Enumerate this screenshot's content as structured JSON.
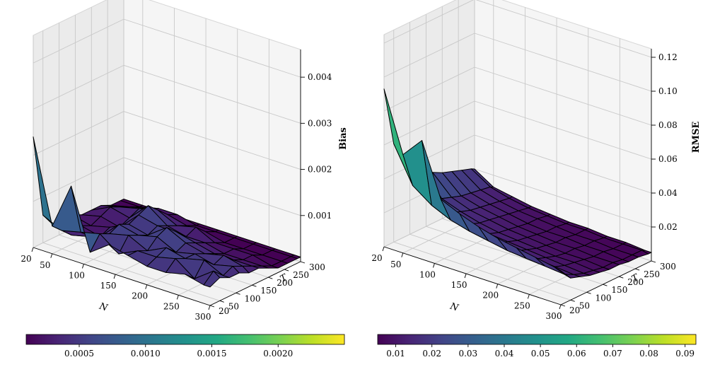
{
  "chart_data": [
    {
      "type": "surface",
      "panel": "left",
      "zlabel": "Bias",
      "xlabel": "N",
      "ylabel": "T",
      "N": [
        20,
        50,
        80,
        110,
        140,
        170,
        200,
        230,
        260,
        290,
        300
      ],
      "T": [
        20,
        50,
        80,
        110,
        140,
        170,
        200,
        230,
        260,
        290,
        300
      ],
      "x_ticks": [
        "20",
        "50",
        "100",
        "150",
        "200",
        "250",
        "300"
      ],
      "y_ticks": [
        "20",
        "50",
        "100",
        "150",
        "200",
        "250",
        "300"
      ],
      "z_ticks": [
        "0.001",
        "0.002",
        "0.003",
        "0.004"
      ],
      "zlim": [
        0,
        0.0046
      ],
      "values": [
        [
          0.0024,
          0.0006,
          0.0003,
          0.0002,
          0.0003,
          0.0002,
          0.0002,
          0.0002,
          0.0001,
          0.0001,
          0.0001
        ],
        [
          0.0006,
          0.0004,
          0.0002,
          0.0003,
          0.0002,
          0.0003,
          0.0004,
          0.0003,
          0.0002,
          0.0001,
          0.0001
        ],
        [
          0.0016,
          0.0005,
          0.0003,
          0.0002,
          0.0003,
          0.0002,
          0.0003,
          0.0004,
          0.0003,
          0.0002,
          0.0001
        ],
        [
          0.0003,
          0.0006,
          0.0005,
          0.0006,
          0.0005,
          0.0006,
          0.0007,
          0.0005,
          0.0003,
          0.0002,
          0.0001
        ],
        [
          0.0006,
          0.0003,
          0.0006,
          0.0005,
          0.0004,
          0.0005,
          0.0004,
          0.0003,
          0.0002,
          0.0001,
          0.0001
        ],
        [
          0.0005,
          0.0005,
          0.0004,
          0.0006,
          0.0007,
          0.0005,
          0.0003,
          0.0004,
          0.0002,
          0.0001,
          0.0001
        ],
        [
          0.0004,
          0.0005,
          0.0006,
          0.0004,
          0.0005,
          0.0004,
          0.0003,
          0.0002,
          0.0001,
          0.0001,
          0.0001
        ],
        [
          0.0004,
          0.0006,
          0.0005,
          0.0005,
          0.0004,
          0.0003,
          0.0002,
          0.0002,
          0.0001,
          0.0001,
          0.0001
        ],
        [
          0.0005,
          0.0003,
          0.0006,
          0.0004,
          0.0005,
          0.0003,
          0.0002,
          0.0002,
          0.0001,
          0.0001,
          0.0001
        ],
        [
          0.0004,
          0.0006,
          0.0004,
          0.0005,
          0.0004,
          0.0003,
          0.0002,
          0.0001,
          0.0001,
          0.0001,
          0.0001
        ],
        [
          0.0004,
          0.0005,
          0.0004,
          0.0004,
          0.0003,
          0.0003,
          0.0002,
          0.0001,
          0.0001,
          0.0001,
          0.0001
        ]
      ],
      "colorbar": {
        "range": [
          0.0001,
          0.0025
        ],
        "ticks": [
          0.0005,
          0.001,
          0.0015,
          0.002
        ],
        "tick_labels": [
          "0.0005",
          "0.0010",
          "0.0015",
          "0.0020"
        ]
      }
    },
    {
      "type": "surface",
      "panel": "right",
      "zlabel": "RMSE",
      "xlabel": "N",
      "ylabel": "T",
      "N": [
        20,
        50,
        80,
        110,
        140,
        170,
        200,
        230,
        260,
        290,
        300
      ],
      "T": [
        20,
        50,
        80,
        110,
        140,
        170,
        200,
        230,
        260,
        290,
        300
      ],
      "x_ticks": [
        "20",
        "50",
        "100",
        "150",
        "200",
        "250",
        "300"
      ],
      "y_ticks": [
        "20",
        "50",
        "100",
        "150",
        "200",
        "250",
        "300"
      ],
      "z_ticks": [
        "0.02",
        "0.04",
        "0.06",
        "0.08",
        "0.10",
        "0.12"
      ],
      "zlim": [
        0,
        0.125
      ],
      "values": [
        [
          0.093,
          0.058,
          0.046,
          0.039,
          0.034,
          0.03,
          0.027,
          0.025,
          0.023,
          0.021,
          0.02
        ],
        [
          0.058,
          0.037,
          0.029,
          0.024,
          0.021,
          0.019,
          0.017,
          0.016,
          0.015,
          0.014,
          0.013
        ],
        [
          0.07,
          0.029,
          0.023,
          0.019,
          0.017,
          0.015,
          0.014,
          0.013,
          0.012,
          0.011,
          0.011
        ],
        [
          0.039,
          0.024,
          0.019,
          0.016,
          0.014,
          0.013,
          0.012,
          0.011,
          0.01,
          0.009,
          0.009
        ],
        [
          0.034,
          0.021,
          0.017,
          0.014,
          0.012,
          0.011,
          0.01,
          0.009,
          0.009,
          0.008,
          0.008
        ],
        [
          0.03,
          0.019,
          0.015,
          0.013,
          0.011,
          0.01,
          0.009,
          0.008,
          0.008,
          0.007,
          0.007
        ],
        [
          0.027,
          0.017,
          0.014,
          0.012,
          0.01,
          0.009,
          0.008,
          0.008,
          0.007,
          0.007,
          0.007
        ],
        [
          0.025,
          0.016,
          0.013,
          0.011,
          0.009,
          0.008,
          0.008,
          0.007,
          0.007,
          0.006,
          0.006
        ],
        [
          0.023,
          0.015,
          0.012,
          0.01,
          0.009,
          0.008,
          0.007,
          0.007,
          0.006,
          0.006,
          0.006
        ],
        [
          0.021,
          0.014,
          0.011,
          0.009,
          0.008,
          0.007,
          0.007,
          0.006,
          0.006,
          0.006,
          0.005
        ],
        [
          0.02,
          0.013,
          0.011,
          0.009,
          0.008,
          0.007,
          0.007,
          0.006,
          0.006,
          0.005,
          0.005
        ]
      ],
      "colorbar": {
        "range": [
          0.005,
          0.093
        ],
        "ticks": [
          0.01,
          0.02,
          0.03,
          0.04,
          0.05,
          0.06,
          0.07,
          0.08,
          0.09
        ],
        "tick_labels": [
          "0.01",
          "0.02",
          "0.03",
          "0.04",
          "0.05",
          "0.06",
          "0.07",
          "0.08",
          "0.09"
        ]
      }
    }
  ]
}
